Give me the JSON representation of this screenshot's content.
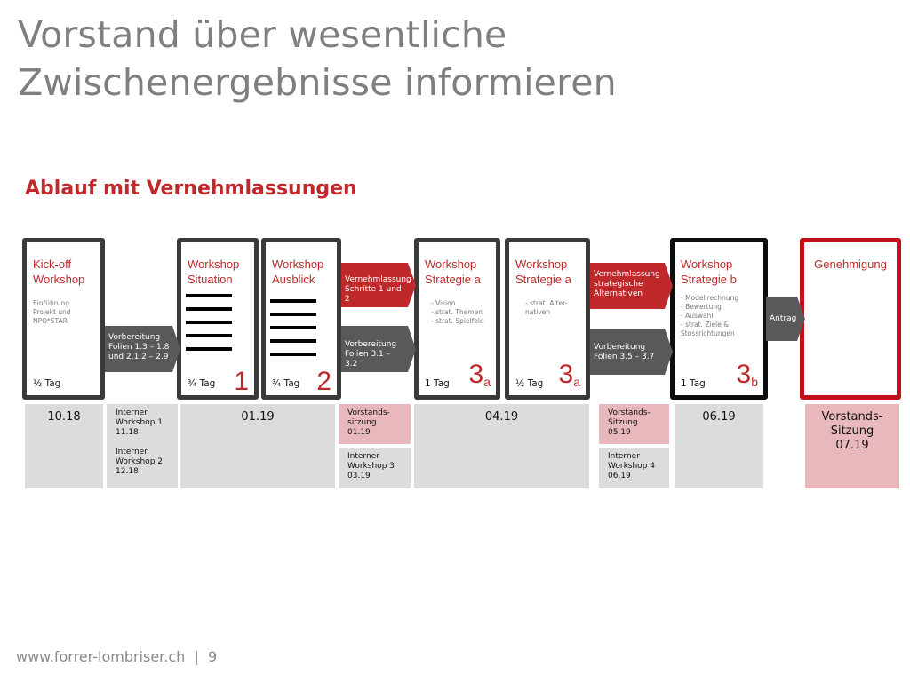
{
  "title": "Vorstand über wesentliche\nZwischenergebnisse informieren",
  "subtitle": "Ablauf mit Vernehmlassungen",
  "cards": [
    {
      "title": "Kick-off\nWorkshop",
      "desc": "Einführung\nProjekt und\nNPO*STAR",
      "duration": "½ Tag",
      "number": "",
      "sub": ""
    },
    {
      "title": "Workshop\nSituation",
      "desc": "",
      "duration": "¾ Tag",
      "number": "1",
      "sub": ""
    },
    {
      "title": "Workshop\nAusblick",
      "desc": "",
      "duration": "¾ Tag",
      "number": "2",
      "sub": ""
    },
    {
      "title": "Workshop\nStrategie a",
      "desc": "- Vision\n- strat. Themen\n- strat. Spielfeld",
      "duration": "1 Tag",
      "number": "3",
      "sub": "a"
    },
    {
      "title": "Workshop\nStrategie a",
      "desc": "- strat. Alter-\n  nativen",
      "duration": "½ Tag",
      "number": "3",
      "sub": "a"
    },
    {
      "title": "Workshop\nStrategie b",
      "desc": "- Modellrechnung\n- Bewertung\n- Auswahl\n- strat. Ziele &\n  Stossrichtungen",
      "duration": "1 Tag",
      "number": "3",
      "sub": "b"
    },
    {
      "title": "Genehmigung",
      "desc": "",
      "duration": "",
      "number": "",
      "sub": ""
    }
  ],
  "arrows": [
    {
      "text": "Vorbereitung\nFolien 1.3 – 1.8\nund 2.1.2 – 2.9"
    },
    {
      "text": "Vernehmlassung\nSchritte 1 und 2"
    },
    {
      "text": "Vorbereitung\nFolien 3.1 – 3.2"
    },
    {
      "text": "Vernehmlassung\nstrategische\nAlternativen"
    },
    {
      "text": "Vorbereitung\nFolien 3.5 – 3.7"
    },
    {
      "text": "Antrag"
    }
  ],
  "timeline": [
    {
      "text": "10.18"
    },
    {
      "text": "Interner\nWorkshop 1\n11.18\n\nInterner\nWorkshop 2\n12.18"
    },
    {
      "text": "01.19"
    },
    {
      "text": "Vorstands-\nsitzung\n01.19"
    },
    {
      "text": "Interner\nWorkshop 3\n03.19"
    },
    {
      "text": "04.19"
    },
    {
      "text": "Vorstands-\nSitzung\n05.19"
    },
    {
      "text": "Interner\nWorkshop 4\n06.19"
    },
    {
      "text": "06.19"
    },
    {
      "text": "Vorstands-\nSitzung\n07.19"
    }
  ],
  "footer": "www.forrer-lombriser.ch  |  9",
  "colors": {
    "accent": "#c0292b",
    "dark": "#3a3a3a",
    "gray_arrow": "#595959",
    "timeline_gray": "#dcdcdc",
    "timeline_pink": "#e8b8bc"
  }
}
